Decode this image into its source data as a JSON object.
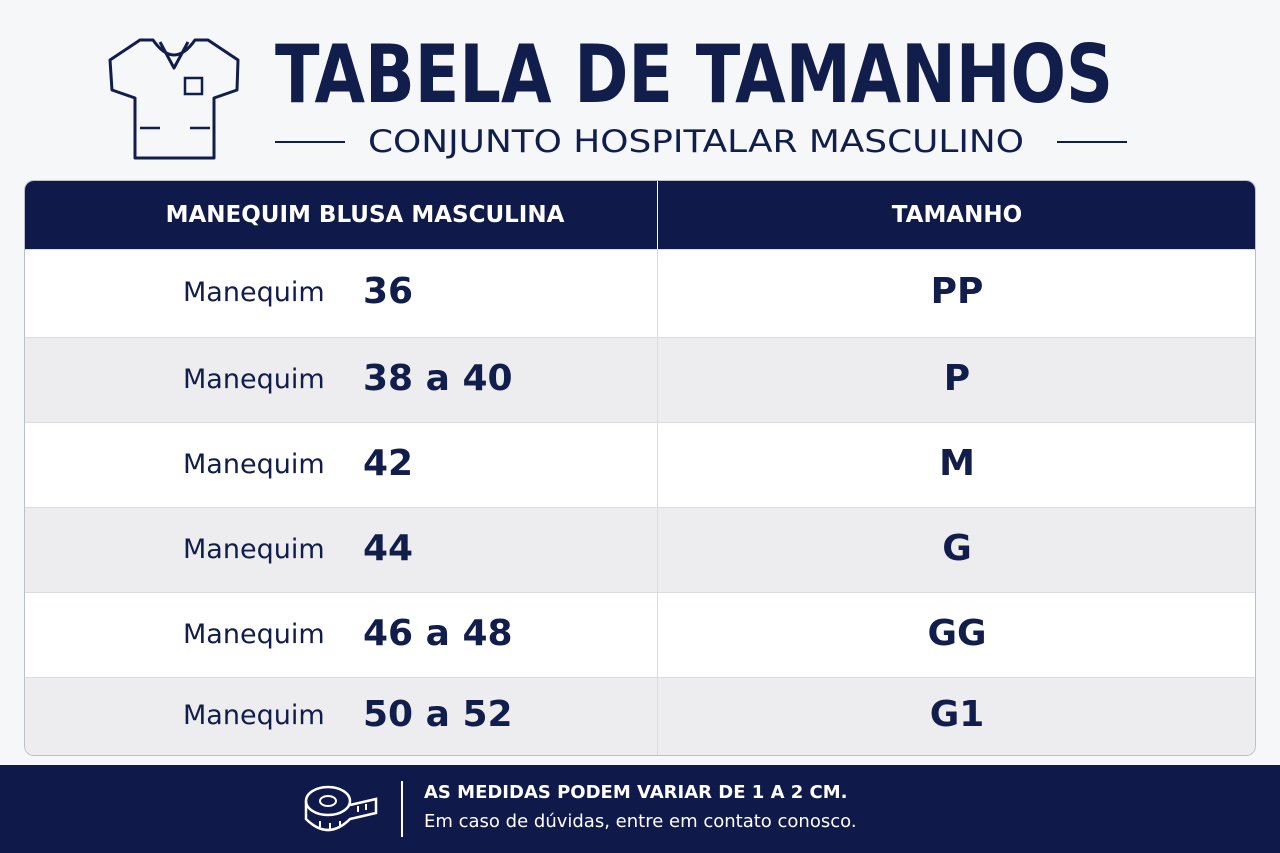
{
  "header": {
    "title": "TABELA DE TAMANHOS",
    "subtitle": "CONJUNTO HOSPITALAR MASCULINO"
  },
  "table": {
    "columns": [
      "MANEQUIM BLUSA MASCULINA",
      "TAMANHO"
    ],
    "rows": [
      {
        "prefix": "Manequim",
        "range": "36",
        "size": "PP"
      },
      {
        "prefix": "Manequim",
        "range": "38 a 40",
        "size": "P"
      },
      {
        "prefix": "Manequim",
        "range": "42",
        "size": "M"
      },
      {
        "prefix": "Manequim",
        "range": "44",
        "size": "G"
      },
      {
        "prefix": "Manequim",
        "range": "46 a 48",
        "size": "GG"
      },
      {
        "prefix": "Manequim",
        "range": "50 a 52",
        "size": "G1"
      }
    ]
  },
  "footer": {
    "note": "AS MEDIDAS PODEM VARIAR DE 1 A 2 CM.",
    "text": "Em caso de dúvidas, entre em contato conosco."
  }
}
